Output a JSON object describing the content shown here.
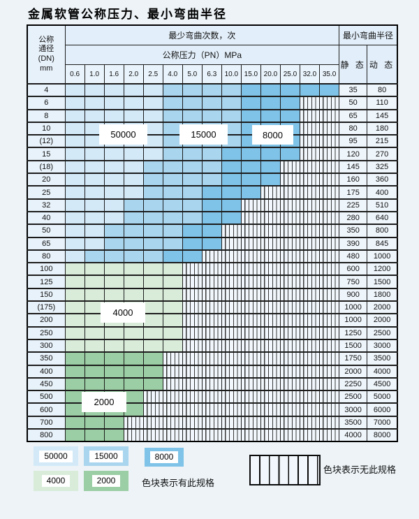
{
  "title": "金属软管公称压力、最小弯曲半径",
  "table": {
    "corner": {
      "line1": "公称",
      "line2": "通径",
      "line3": "(DN)",
      "line4": "mm"
    },
    "bend_cycles_header": "最少弯曲次数，次",
    "pressure_header": "公称压力（PN）MPa",
    "radius_header": "最小弯曲半径",
    "static_header": "静 态",
    "dynamic_header": "动 态",
    "pressures": [
      "0.6",
      "1.0",
      "1.6",
      "2.0",
      "2.5",
      "4.0",
      "5.0",
      "6.3",
      "10.0",
      "15.0",
      "20.0",
      "25.0",
      "32.0",
      "35.0"
    ],
    "rows": [
      {
        "dn": "4",
        "static": "35",
        "dynamic": "80",
        "zones": [
          {
            "cycles": "50000",
            "from": 1,
            "to": 5
          },
          {
            "cycles": "15000",
            "from": 6,
            "to": 9
          },
          {
            "cycles": "8000",
            "from": 10,
            "to": 14
          }
        ]
      },
      {
        "dn": "6",
        "static": "50",
        "dynamic": "110",
        "zones": [
          {
            "cycles": "50000",
            "from": 1,
            "to": 5
          },
          {
            "cycles": "15000",
            "from": 6,
            "to": 9
          },
          {
            "cycles": "8000",
            "from": 10,
            "to": 12
          }
        ]
      },
      {
        "dn": "8",
        "static": "65",
        "dynamic": "145",
        "zones": [
          {
            "cycles": "50000",
            "from": 1,
            "to": 5
          },
          {
            "cycles": "15000",
            "from": 6,
            "to": 9
          },
          {
            "cycles": "8000",
            "from": 10,
            "to": 12
          }
        ]
      },
      {
        "dn": "10",
        "static": "80",
        "dynamic": "180",
        "zones": [
          {
            "cycles": "50000",
            "from": 1,
            "to": 5
          },
          {
            "cycles": "15000",
            "from": 6,
            "to": 9
          },
          {
            "cycles": "8000",
            "from": 10,
            "to": 12
          }
        ]
      },
      {
        "dn": "(12)",
        "static": "95",
        "dynamic": "215",
        "zones": [
          {
            "cycles": "50000",
            "from": 1,
            "to": 5
          },
          {
            "cycles": "15000",
            "from": 6,
            "to": 9
          },
          {
            "cycles": "8000",
            "from": 10,
            "to": 12
          }
        ]
      },
      {
        "dn": "15",
        "static": "120",
        "dynamic": "270",
        "zones": [
          {
            "cycles": "50000",
            "from": 1,
            "to": 5
          },
          {
            "cycles": "15000",
            "from": 6,
            "to": 8
          },
          {
            "cycles": "8000",
            "from": 9,
            "to": 12
          }
        ]
      },
      {
        "dn": "(18)",
        "static": "145",
        "dynamic": "325",
        "zones": [
          {
            "cycles": "50000",
            "from": 1,
            "to": 4
          },
          {
            "cycles": "15000",
            "from": 5,
            "to": 8
          },
          {
            "cycles": "8000",
            "from": 9,
            "to": 11
          }
        ]
      },
      {
        "dn": "20",
        "static": "160",
        "dynamic": "360",
        "zones": [
          {
            "cycles": "50000",
            "from": 1,
            "to": 4
          },
          {
            "cycles": "15000",
            "from": 5,
            "to": 8
          },
          {
            "cycles": "8000",
            "from": 9,
            "to": 11
          }
        ]
      },
      {
        "dn": "25",
        "static": "175",
        "dynamic": "400",
        "zones": [
          {
            "cycles": "50000",
            "from": 1,
            "to": 4
          },
          {
            "cycles": "15000",
            "from": 5,
            "to": 7
          },
          {
            "cycles": "8000",
            "from": 8,
            "to": 10
          }
        ]
      },
      {
        "dn": "32",
        "static": "225",
        "dynamic": "510",
        "zones": [
          {
            "cycles": "50000",
            "from": 1,
            "to": 3
          },
          {
            "cycles": "15000",
            "from": 4,
            "to": 7
          },
          {
            "cycles": "8000",
            "from": 8,
            "to": 9
          }
        ]
      },
      {
        "dn": "40",
        "static": "280",
        "dynamic": "640",
        "zones": [
          {
            "cycles": "50000",
            "from": 1,
            "to": 3
          },
          {
            "cycles": "15000",
            "from": 4,
            "to": 7
          },
          {
            "cycles": "8000",
            "from": 8,
            "to": 9
          }
        ]
      },
      {
        "dn": "50",
        "static": "350",
        "dynamic": "800",
        "zones": [
          {
            "cycles": "50000",
            "from": 1,
            "to": 2
          },
          {
            "cycles": "15000",
            "from": 3,
            "to": 6
          },
          {
            "cycles": "8000",
            "from": 7,
            "to": 8
          }
        ]
      },
      {
        "dn": "65",
        "static": "390",
        "dynamic": "845",
        "zones": [
          {
            "cycles": "50000",
            "from": 1,
            "to": 2
          },
          {
            "cycles": "15000",
            "from": 3,
            "to": 6
          },
          {
            "cycles": "8000",
            "from": 7,
            "to": 8
          }
        ]
      },
      {
        "dn": "80",
        "static": "480",
        "dynamic": "1000",
        "zones": [
          {
            "cycles": "50000",
            "from": 1,
            "to": 1
          },
          {
            "cycles": "15000",
            "from": 2,
            "to": 5
          },
          {
            "cycles": "8000",
            "from": 6,
            "to": 7
          }
        ]
      },
      {
        "dn": "100",
        "static": "600",
        "dynamic": "1200",
        "zones": [
          {
            "cycles": "4000",
            "from": 1,
            "to": 6
          }
        ]
      },
      {
        "dn": "125",
        "static": "750",
        "dynamic": "1500",
        "zones": [
          {
            "cycles": "4000",
            "from": 1,
            "to": 6
          }
        ]
      },
      {
        "dn": "150",
        "static": "900",
        "dynamic": "1800",
        "zones": [
          {
            "cycles": "4000",
            "from": 1,
            "to": 6
          }
        ]
      },
      {
        "dn": "(175)",
        "static": "1000",
        "dynamic": "2000",
        "zones": [
          {
            "cycles": "4000",
            "from": 1,
            "to": 6
          }
        ]
      },
      {
        "dn": "200",
        "static": "1000",
        "dynamic": "2000",
        "zones": [
          {
            "cycles": "4000",
            "from": 1,
            "to": 6
          }
        ]
      },
      {
        "dn": "250",
        "static": "1250",
        "dynamic": "2500",
        "zones": [
          {
            "cycles": "4000",
            "from": 1,
            "to": 6
          }
        ]
      },
      {
        "dn": "300",
        "static": "1500",
        "dynamic": "3000",
        "zones": [
          {
            "cycles": "4000",
            "from": 1,
            "to": 6
          }
        ]
      },
      {
        "dn": "350",
        "static": "1750",
        "dynamic": "3500",
        "zones": [
          {
            "cycles": "2000",
            "from": 1,
            "to": 5
          }
        ]
      },
      {
        "dn": "400",
        "static": "2000",
        "dynamic": "4000",
        "zones": [
          {
            "cycles": "2000",
            "from": 1,
            "to": 5
          }
        ]
      },
      {
        "dn": "450",
        "static": "2250",
        "dynamic": "4500",
        "zones": [
          {
            "cycles": "2000",
            "from": 1,
            "to": 5
          }
        ]
      },
      {
        "dn": "500",
        "static": "2500",
        "dynamic": "5000",
        "zones": [
          {
            "cycles": "2000",
            "from": 1,
            "to": 4
          }
        ]
      },
      {
        "dn": "600",
        "static": "3000",
        "dynamic": "6000",
        "zones": [
          {
            "cycles": "2000",
            "from": 1,
            "to": 4
          }
        ]
      },
      {
        "dn": "700",
        "static": "3500",
        "dynamic": "7000",
        "zones": [
          {
            "cycles": "2000",
            "from": 1,
            "to": 3
          }
        ]
      },
      {
        "dn": "800",
        "static": "4000",
        "dynamic": "8000",
        "zones": [
          {
            "cycles": "2000",
            "from": 1,
            "to": 3
          }
        ]
      }
    ]
  },
  "overlay_labels": [
    "50000",
    "15000",
    "8000",
    "4000",
    "2000"
  ],
  "colors": {
    "50000": "#d3e9f8",
    "15000": "#a9d5ef",
    "8000": "#7fc3e8",
    "4000": "#d9ecda",
    "2000": "#9bcea4",
    "unavailable_bg": "#f1f7fc",
    "stripe": "#383838"
  },
  "legend": {
    "items": [
      {
        "cycles": "50000",
        "color": "#d3e9f8"
      },
      {
        "cycles": "15000",
        "color": "#a9d5ef"
      },
      {
        "cycles": "8000",
        "color": "#7fc3e8"
      },
      {
        "cycles": "4000",
        "color": "#d9ecda"
      },
      {
        "cycles": "2000",
        "color": "#9bcea4"
      }
    ],
    "available_note": "色块表示有此规格",
    "unavailable_note": "色块表示无此规格"
  }
}
